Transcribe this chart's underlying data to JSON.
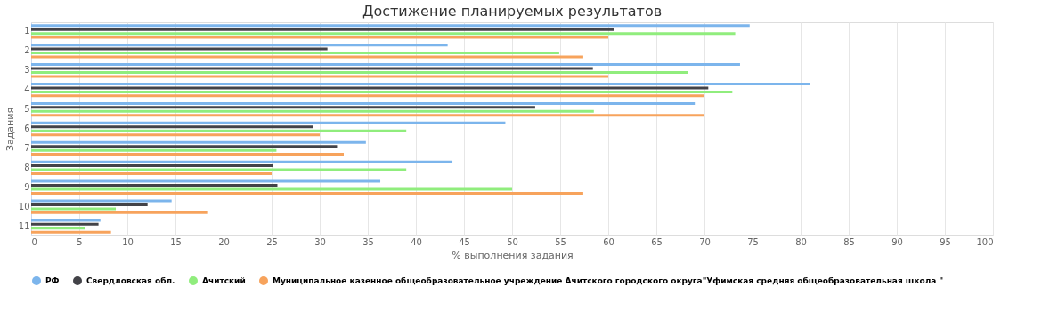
{
  "chart_data": {
    "type": "bar",
    "orientation": "horizontal",
    "title": "Достижение планируемых результатов",
    "xlabel": "% выполнения задания",
    "ylabel": "Задания",
    "categories": [
      "1",
      "2",
      "3",
      "4",
      "5",
      "6",
      "7",
      "8",
      "9",
      "10",
      "11"
    ],
    "series": [
      {
        "name": "РФ",
        "color": "#7cb5ec",
        "values": [
          74.7,
          43.3,
          73.7,
          81.0,
          69.0,
          49.3,
          34.8,
          43.8,
          36.3,
          14.6,
          7.2
        ]
      },
      {
        "name": "Свердловская обл.",
        "color": "#434348",
        "values": [
          60.6,
          30.8,
          58.4,
          70.4,
          52.4,
          29.3,
          31.8,
          25.1,
          25.6,
          12.1,
          7.0
        ]
      },
      {
        "name": "Ачитский",
        "color": "#90ed7d",
        "values": [
          73.2,
          54.9,
          68.3,
          72.9,
          58.5,
          39.0,
          25.5,
          39.0,
          50.0,
          8.8,
          5.6
        ]
      },
      {
        "name": "Муниципальное казенное общеобразовательное учреждение Ачитского городского округа\"Уфимская средняя общеобразовательная школа \"",
        "color": "#f7a35c",
        "values": [
          60.0,
          57.4,
          60.0,
          70.0,
          70.0,
          30.0,
          32.5,
          25.0,
          57.4,
          18.3,
          8.3
        ]
      }
    ],
    "xlim": [
      0,
      100
    ],
    "xticks": [
      0,
      5,
      10,
      15,
      20,
      25,
      30,
      35,
      40,
      45,
      50,
      55,
      60,
      65,
      70,
      75,
      80,
      85,
      90,
      95,
      100
    ],
    "grid": "x",
    "legend": "bottom"
  }
}
